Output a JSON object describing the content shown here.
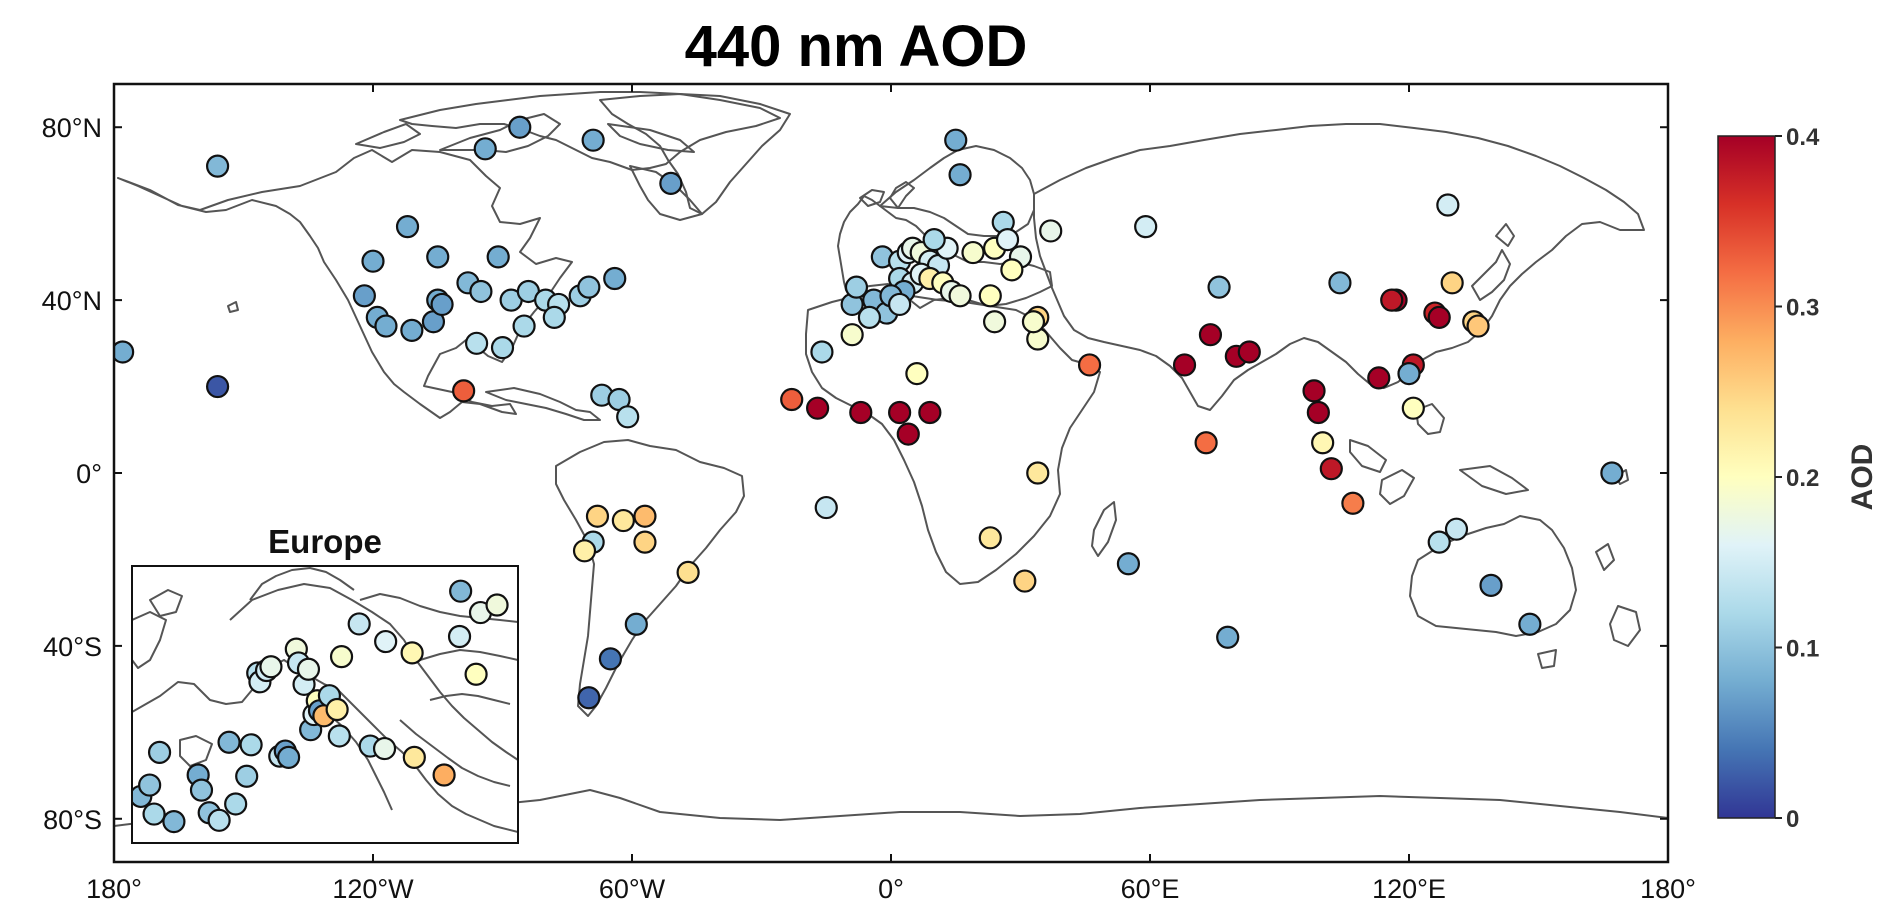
{
  "chart_data": {
    "type": "scatter",
    "subtype": "map",
    "title": "440 nm AOD",
    "x_ticks": [
      "180°",
      "120°W",
      "60°W",
      "0°",
      "60°E",
      "120°E",
      "180°"
    ],
    "y_ticks": [
      "80°N",
      "40°N",
      "0°",
      "40°S",
      "80°S"
    ],
    "xlim": [
      -180,
      180
    ],
    "ylim": [
      -90,
      90
    ],
    "colorbar": {
      "label": "AOD",
      "ticks": [
        "0",
        "0.1",
        "0.2",
        "0.3",
        "0.4"
      ],
      "range": [
        0,
        0.4
      ],
      "colormap": "RdYlBu reversed",
      "colors": [
        "#313695",
        "#4575b4",
        "#74add1",
        "#abd9e9",
        "#e0f3f8",
        "#ffffbf",
        "#fee090",
        "#fdae61",
        "#f46d43",
        "#d73027",
        "#a50026"
      ]
    },
    "inset": {
      "title": "Europe"
    },
    "stations": [
      {
        "lon": -178,
        "lat": 28,
        "aod": 0.08
      },
      {
        "lon": -156,
        "lat": 71,
        "aod": 0.09
      },
      {
        "lon": -156,
        "lat": 20,
        "aod": 0.02
      },
      {
        "lon": -120,
        "lat": 49,
        "aod": 0.08
      },
      {
        "lon": -112,
        "lat": 57,
        "aod": 0.08
      },
      {
        "lon": -105,
        "lat": 40,
        "aod": 0.08
      },
      {
        "lon": -122,
        "lat": 41,
        "aod": 0.07
      },
      {
        "lon": -119,
        "lat": 36,
        "aod": 0.08
      },
      {
        "lon": -117,
        "lat": 34,
        "aod": 0.08
      },
      {
        "lon": -111,
        "lat": 33,
        "aod": 0.08
      },
      {
        "lon": -106,
        "lat": 35,
        "aod": 0.07
      },
      {
        "lon": -104,
        "lat": 39,
        "aod": 0.07
      },
      {
        "lon": -98,
        "lat": 44,
        "aod": 0.09
      },
      {
        "lon": -95,
        "lat": 42,
        "aod": 0.1
      },
      {
        "lon": -105,
        "lat": 50,
        "aod": 0.08
      },
      {
        "lon": -91,
        "lat": 50,
        "aod": 0.08
      },
      {
        "lon": -94,
        "lat": 75,
        "aod": 0.08
      },
      {
        "lon": -86,
        "lat": 80,
        "aod": 0.07
      },
      {
        "lon": -69,
        "lat": 77,
        "aod": 0.08
      },
      {
        "lon": -51,
        "lat": 67,
        "aod": 0.07
      },
      {
        "lon": -88,
        "lat": 40,
        "aod": 0.11
      },
      {
        "lon": -84,
        "lat": 42,
        "aod": 0.11
      },
      {
        "lon": -80,
        "lat": 40,
        "aod": 0.12
      },
      {
        "lon": -77,
        "lat": 39,
        "aod": 0.13
      },
      {
        "lon": -72,
        "lat": 41,
        "aod": 0.11
      },
      {
        "lon": -70,
        "lat": 43,
        "aod": 0.1
      },
      {
        "lon": -64,
        "lat": 45,
        "aod": 0.08
      },
      {
        "lon": -85,
        "lat": 34,
        "aod": 0.12
      },
      {
        "lon": -78,
        "lat": 36,
        "aod": 0.12
      },
      {
        "lon": -96,
        "lat": 30,
        "aod": 0.13
      },
      {
        "lon": -90,
        "lat": 29,
        "aod": 0.12
      },
      {
        "lon": -99,
        "lat": 19,
        "aod": 0.33
      },
      {
        "lon": -67,
        "lat": 18,
        "aod": 0.11
      },
      {
        "lon": -63,
        "lat": 17,
        "aod": 0.11
      },
      {
        "lon": -61,
        "lat": 13,
        "aod": 0.13
      },
      {
        "lon": -68,
        "lat": -10,
        "aod": 0.25
      },
      {
        "lon": -62,
        "lat": -11,
        "aod": 0.23
      },
      {
        "lon": -57,
        "lat": -10,
        "aod": 0.27
      },
      {
        "lon": -57,
        "lat": -16,
        "aod": 0.25
      },
      {
        "lon": -69,
        "lat": -16,
        "aod": 0.12
      },
      {
        "lon": -71,
        "lat": -18,
        "aod": 0.22
      },
      {
        "lon": -47,
        "lat": -23,
        "aod": 0.24
      },
      {
        "lon": -59,
        "lat": -35,
        "aod": 0.08
      },
      {
        "lon": -65,
        "lat": -43,
        "aod": 0.04
      },
      {
        "lon": -70,
        "lat": -52,
        "aod": 0.03
      },
      {
        "lon": -16,
        "lat": 28,
        "aod": 0.12
      },
      {
        "lon": -23,
        "lat": 17,
        "aod": 0.33
      },
      {
        "lon": -17,
        "lat": 15,
        "aod": 0.4
      },
      {
        "lon": -7,
        "lat": 14,
        "aod": 0.4
      },
      {
        "lon": 2,
        "lat": 14,
        "aod": 0.4
      },
      {
        "lon": 4,
        "lat": 9,
        "aod": 0.4
      },
      {
        "lon": 9,
        "lat": 14,
        "aod": 0.4
      },
      {
        "lon": 6,
        "lat": 23,
        "aod": 0.2
      },
      {
        "lon": -15,
        "lat": -8,
        "aod": 0.14
      },
      {
        "lon": 34,
        "lat": 0,
        "aod": 0.23
      },
      {
        "lon": 23,
        "lat": -15,
        "aod": 0.23
      },
      {
        "lon": 31,
        "lat": -25,
        "aod": 0.25
      },
      {
        "lon": 55,
        "lat": -21,
        "aod": 0.08
      },
      {
        "lon": 78,
        "lat": -38,
        "aod": 0.08
      },
      {
        "lon": 34,
        "lat": 31,
        "aod": 0.19
      },
      {
        "lon": 34,
        "lat": 36,
        "aod": 0.25
      },
      {
        "lon": 46,
        "lat": 25,
        "aod": 0.32
      },
      {
        "lon": 16,
        "lat": 69,
        "aod": 0.08
      },
      {
        "lon": 15,
        "lat": 77,
        "aod": 0.08
      },
      {
        "lon": 37,
        "lat": 56,
        "aod": 0.17
      },
      {
        "lon": 59,
        "lat": 57,
        "aod": 0.15
      },
      {
        "lon": 76,
        "lat": 43,
        "aod": 0.1
      },
      {
        "lon": 104,
        "lat": 44,
        "aod": 0.09
      },
      {
        "lon": 68,
        "lat": 25,
        "aod": 0.4
      },
      {
        "lon": 74,
        "lat": 32,
        "aod": 0.4
      },
      {
        "lon": 80,
        "lat": 27,
        "aod": 0.4
      },
      {
        "lon": 83,
        "lat": 28,
        "aod": 0.4
      },
      {
        "lon": 73,
        "lat": 7,
        "aod": 0.32
      },
      {
        "lon": 98,
        "lat": 19,
        "aod": 0.4
      },
      {
        "lon": 99,
        "lat": 14,
        "aod": 0.4
      },
      {
        "lon": 100,
        "lat": 7,
        "aod": 0.21
      },
      {
        "lon": 102,
        "lat": 1,
        "aod": 0.38
      },
      {
        "lon": 107,
        "lat": -7,
        "aod": 0.31
      },
      {
        "lon": 113,
        "lat": 22,
        "aod": 0.4
      },
      {
        "lon": 117,
        "lat": 40,
        "aod": 0.4
      },
      {
        "lon": 116,
        "lat": 40,
        "aod": 0.38
      },
      {
        "lon": 121,
        "lat": 25,
        "aod": 0.38
      },
      {
        "lon": 120,
        "lat": 23,
        "aod": 0.08
      },
      {
        "lon": 121,
        "lat": 15,
        "aod": 0.2
      },
      {
        "lon": 126,
        "lat": 37,
        "aod": 0.37
      },
      {
        "lon": 127,
        "lat": 36,
        "aod": 0.4
      },
      {
        "lon": 130,
        "lat": 44,
        "aod": 0.25
      },
      {
        "lon": 135,
        "lat": 35,
        "aod": 0.25
      },
      {
        "lon": 136,
        "lat": 34,
        "aod": 0.26
      },
      {
        "lon": 129,
        "lat": 62,
        "aod": 0.15
      },
      {
        "lon": 131,
        "lat": -13,
        "aod": 0.14
      },
      {
        "lon": 127,
        "lat": -16,
        "aod": 0.13
      },
      {
        "lon": 139,
        "lat": -26,
        "aod": 0.07
      },
      {
        "lon": 148,
        "lat": -35,
        "aod": 0.08
      },
      {
        "lon": 167,
        "lat": 0,
        "aod": 0.08
      },
      {
        "lon": -9,
        "lat": 39,
        "aod": 0.1
      },
      {
        "lon": -4,
        "lat": 40,
        "aod": 0.09
      },
      {
        "lon": -1,
        "lat": 37,
        "aod": 0.1
      },
      {
        "lon": -8,
        "lat": 43,
        "aod": 0.11
      },
      {
        "lon": -5,
        "lat": 36,
        "aod": 0.13
      },
      {
        "lon": -9,
        "lat": 32,
        "aod": 0.19
      },
      {
        "lon": -2,
        "lat": 50,
        "aod": 0.1
      },
      {
        "lon": 2,
        "lat": 49,
        "aod": 0.13
      },
      {
        "lon": 4,
        "lat": 51,
        "aod": 0.16
      },
      {
        "lon": 5,
        "lat": 52,
        "aod": 0.17
      },
      {
        "lon": 7,
        "lat": 51,
        "aod": 0.18
      },
      {
        "lon": 9,
        "lat": 49,
        "aod": 0.15
      },
      {
        "lon": 11,
        "lat": 48,
        "aod": 0.14
      },
      {
        "lon": 13,
        "lat": 52,
        "aod": 0.16
      },
      {
        "lon": 10,
        "lat": 54,
        "aod": 0.12
      },
      {
        "lon": 2,
        "lat": 45,
        "aod": 0.12
      },
      {
        "lon": 5,
        "lat": 44,
        "aod": 0.15
      },
      {
        "lon": 7,
        "lat": 46,
        "aod": 0.16
      },
      {
        "lon": 9,
        "lat": 45,
        "aod": 0.22
      },
      {
        "lon": 12,
        "lat": 44,
        "aod": 0.2
      },
      {
        "lon": 14,
        "lat": 42,
        "aod": 0.17
      },
      {
        "lon": 16,
        "lat": 41,
        "aod": 0.18
      },
      {
        "lon": 3,
        "lat": 42,
        "aod": 0.08
      },
      {
        "lon": 0,
        "lat": 41,
        "aod": 0.09
      },
      {
        "lon": 2,
        "lat": 39,
        "aod": 0.14
      },
      {
        "lon": 19,
        "lat": 51,
        "aod": 0.19
      },
      {
        "lon": 24,
        "lat": 52,
        "aod": 0.2
      },
      {
        "lon": 26,
        "lat": 58,
        "aod": 0.12
      },
      {
        "lon": 27,
        "lat": 54,
        "aod": 0.16
      },
      {
        "lon": 30,
        "lat": 50,
        "aod": 0.17
      },
      {
        "lon": 28,
        "lat": 47,
        "aod": 0.2
      },
      {
        "lon": 23,
        "lat": 41,
        "aod": 0.2
      },
      {
        "lon": 24,
        "lat": 35,
        "aod": 0.18
      },
      {
        "lon": 33,
        "lat": 35,
        "aod": 0.19
      }
    ],
    "inset_stations": [
      {
        "lon": -9.2,
        "lat": 38.7,
        "aod": 0.09
      },
      {
        "lon": -8.4,
        "lat": 39.6,
        "aod": 0.1
      },
      {
        "lon": -8.0,
        "lat": 37.3,
        "aod": 0.12
      },
      {
        "lon": -7.5,
        "lat": 42.2,
        "aod": 0.11
      },
      {
        "lon": -6.2,
        "lat": 36.7,
        "aod": 0.09
      },
      {
        "lon": -4.0,
        "lat": 40.4,
        "aod": 0.08
      },
      {
        "lon": -3.7,
        "lat": 39.2,
        "aod": 0.1
      },
      {
        "lon": -3.0,
        "lat": 37.4,
        "aod": 0.1
      },
      {
        "lon": -2.1,
        "lat": 36.8,
        "aod": 0.13
      },
      {
        "lon": -0.6,
        "lat": 38.1,
        "aod": 0.12
      },
      {
        "lon": -1.2,
        "lat": 43.0,
        "aod": 0.09
      },
      {
        "lon": 0.4,
        "lat": 40.3,
        "aod": 0.11
      },
      {
        "lon": 0.8,
        "lat": 42.8,
        "aod": 0.12
      },
      {
        "lon": 1.4,
        "lat": 48.5,
        "aod": 0.13
      },
      {
        "lon": 1.6,
        "lat": 47.8,
        "aod": 0.15
      },
      {
        "lon": 2.2,
        "lat": 48.7,
        "aod": 0.15
      },
      {
        "lon": 2.6,
        "lat": 49.0,
        "aod": 0.17
      },
      {
        "lon": 3.4,
        "lat": 41.9,
        "aod": 0.14
      },
      {
        "lon": 3.9,
        "lat": 42.3,
        "aod": 0.07
      },
      {
        "lon": 4.2,
        "lat": 41.8,
        "aod": 0.08
      },
      {
        "lon": 4.9,
        "lat": 50.4,
        "aod": 0.18
      },
      {
        "lon": 5.1,
        "lat": 49.3,
        "aod": 0.14
      },
      {
        "lon": 5.6,
        "lat": 47.6,
        "aod": 0.15
      },
      {
        "lon": 6.0,
        "lat": 48.8,
        "aod": 0.17
      },
      {
        "lon": 6.2,
        "lat": 44.0,
        "aod": 0.09
      },
      {
        "lon": 6.5,
        "lat": 45.2,
        "aod": 0.16
      },
      {
        "lon": 6.8,
        "lat": 46.3,
        "aod": 0.2
      },
      {
        "lon": 7.0,
        "lat": 45.5,
        "aod": 0.07
      },
      {
        "lon": 7.4,
        "lat": 45.1,
        "aod": 0.27
      },
      {
        "lon": 7.9,
        "lat": 46.7,
        "aod": 0.12
      },
      {
        "lon": 8.6,
        "lat": 45.6,
        "aod": 0.22
      },
      {
        "lon": 8.8,
        "lat": 43.5,
        "aod": 0.13
      },
      {
        "lon": 9.0,
        "lat": 49.8,
        "aod": 0.19
      },
      {
        "lon": 10.6,
        "lat": 52.4,
        "aod": 0.14
      },
      {
        "lon": 11.6,
        "lat": 42.7,
        "aod": 0.12
      },
      {
        "lon": 12.9,
        "lat": 42.5,
        "aod": 0.17
      },
      {
        "lon": 13.0,
        "lat": 51.0,
        "aod": 0.16
      },
      {
        "lon": 15.4,
        "lat": 50.1,
        "aod": 0.21
      },
      {
        "lon": 15.6,
        "lat": 41.8,
        "aod": 0.23
      },
      {
        "lon": 18.3,
        "lat": 40.4,
        "aod": 0.28
      },
      {
        "lon": 19.8,
        "lat": 55.0,
        "aod": 0.09
      },
      {
        "lon": 19.7,
        "lat": 51.4,
        "aod": 0.15
      },
      {
        "lon": 21.2,
        "lat": 48.4,
        "aod": 0.2
      },
      {
        "lon": 21.6,
        "lat": 53.3,
        "aod": 0.17
      },
      {
        "lon": 23.1,
        "lat": 53.9,
        "aod": 0.18
      }
    ]
  }
}
